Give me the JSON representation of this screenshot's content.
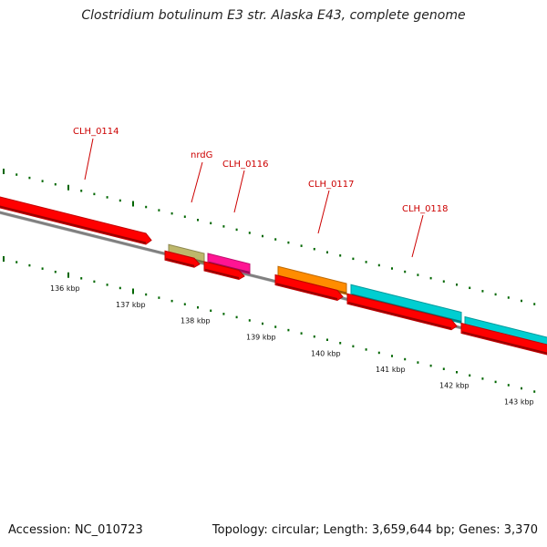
{
  "title": "Clostridium botulinum E3 str. Alaska E43, complete genome",
  "footer": {
    "accession": "Accession: NC_010723",
    "summary": "Topology: circular; Length: 3,659,644 bp; Genes: 3,370"
  },
  "colors": {
    "background": "#ffffff",
    "backbone": "#808080",
    "forward_cds": "#ff0000",
    "tick": "#006600",
    "label": "#cc0000",
    "nrdG": "#bdb76b",
    "CLH_0116": "#ff1493",
    "CLH_0117": "#ff8c00",
    "CLH_0118": "#00ced1"
  },
  "scale": {
    "labels": [
      "136 kbp",
      "137 kbp",
      "138 kbp",
      "139 kbp",
      "140 kbp",
      "141 kbp",
      "142 kbp",
      "143 kbp"
    ]
  },
  "genes": [
    {
      "label": "CLH_0114",
      "color": "#ff0000"
    },
    {
      "label": "nrdG",
      "color": "#bdb76b"
    },
    {
      "label": "CLH_0116",
      "color": "#ff1493"
    },
    {
      "label": "CLH_0117",
      "color": "#ff8c00"
    },
    {
      "label": "CLH_0118",
      "color": "#00ced1"
    }
  ]
}
